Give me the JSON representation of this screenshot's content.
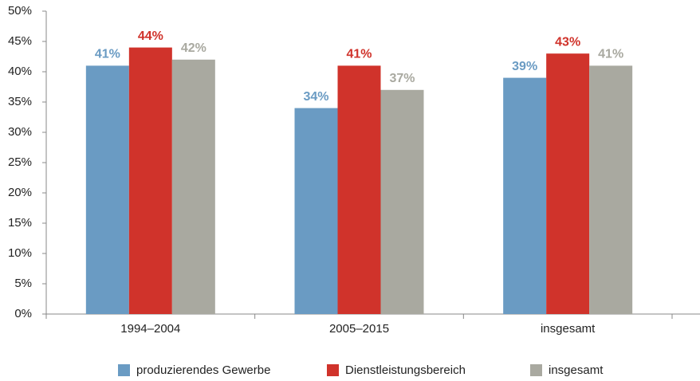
{
  "chart_data": {
    "type": "bar",
    "categories": [
      "1994–2004",
      "2005–2015",
      "insgesamt"
    ],
    "series": [
      {
        "name": "produzierendes Gewerbe",
        "color": "#6a9bc3",
        "values": [
          41,
          34,
          39
        ],
        "value_labels": [
          "41%",
          "34%",
          "39%"
        ]
      },
      {
        "name": "Dienstleistungsbereich",
        "color": "#d0332b",
        "values": [
          44,
          41,
          43
        ],
        "value_labels": [
          "44%",
          "41%",
          "43%"
        ]
      },
      {
        "name": "insgesamt",
        "color": "#a9a9a0",
        "values": [
          42,
          37,
          41
        ],
        "value_labels": [
          "42%",
          "37%",
          "41%"
        ]
      }
    ],
    "ylim": [
      0,
      50
    ],
    "yticks": [
      {
        "value": 0,
        "label": "0%"
      },
      {
        "value": 5,
        "label": "5%"
      },
      {
        "value": 10,
        "label": "10%"
      },
      {
        "value": 15,
        "label": "15%"
      },
      {
        "value": 20,
        "label": "20%"
      },
      {
        "value": 25,
        "label": "25%"
      },
      {
        "value": 30,
        "label": "30%"
      },
      {
        "value": 35,
        "label": "35%"
      },
      {
        "value": 40,
        "label": "40%"
      },
      {
        "value": 45,
        "label": "45%"
      },
      {
        "value": 50,
        "label": "50%"
      }
    ],
    "grid": false,
    "legend": "bottom"
  }
}
